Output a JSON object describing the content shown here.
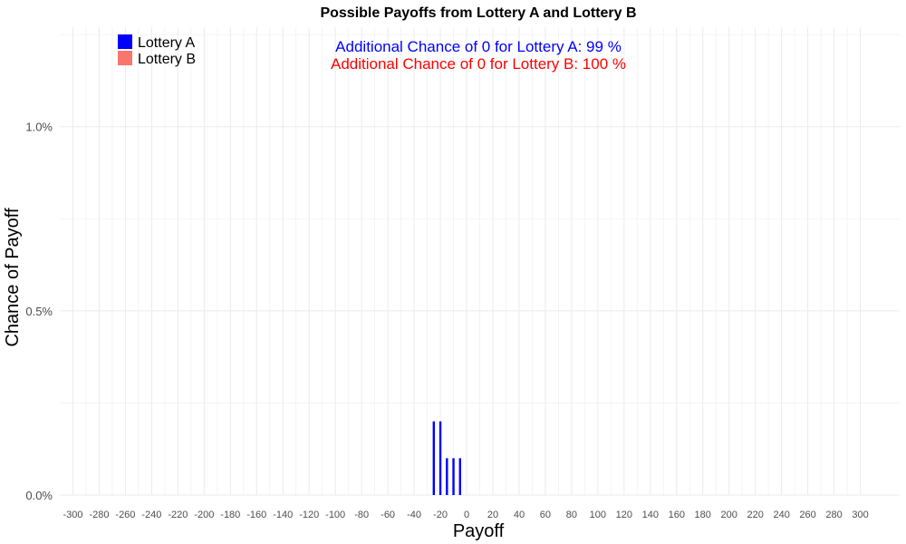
{
  "chart_data": {
    "type": "bar",
    "title": "Possible Payoffs from Lottery A and Lottery B",
    "xlabel": "Payoff",
    "ylabel": "Chance of Payoff",
    "xlim": [
      -310,
      330
    ],
    "ylim": [
      0,
      1.27
    ],
    "x_ticks": [
      -300,
      -280,
      -260,
      -240,
      -220,
      -200,
      -180,
      -160,
      -140,
      -120,
      -100,
      -80,
      -60,
      -40,
      -20,
      0,
      20,
      40,
      60,
      80,
      100,
      120,
      140,
      160,
      180,
      200,
      220,
      240,
      260,
      280,
      300
    ],
    "y_ticks": [
      0,
      0.5,
      1.0
    ],
    "y_tick_labels": [
      "0.0%",
      "0.5%",
      "1.0%"
    ],
    "grid": true,
    "legend": {
      "position": "top-left",
      "entries": [
        {
          "label": "Lottery A",
          "color": "#0000ff"
        },
        {
          "label": "Lottery B",
          "color": "#f8766d"
        }
      ]
    },
    "annotations": [
      {
        "text": "Additional Chance of 0 for Lottery A:  99 %",
        "color": "#0000ff"
      },
      {
        "text": "Additional Chance of 0 for Lottery B:  100 %",
        "color": "#ff0000"
      }
    ],
    "series": [
      {
        "name": "Lottery A",
        "color": "#0000ff",
        "x": [
          -25,
          -20,
          -15,
          -10,
          -5
        ],
        "y": [
          0.2,
          0.2,
          0.1,
          0.1,
          0.1
        ]
      },
      {
        "name": "Lottery B",
        "color": "#f8766d",
        "x": [],
        "y": []
      }
    ]
  }
}
